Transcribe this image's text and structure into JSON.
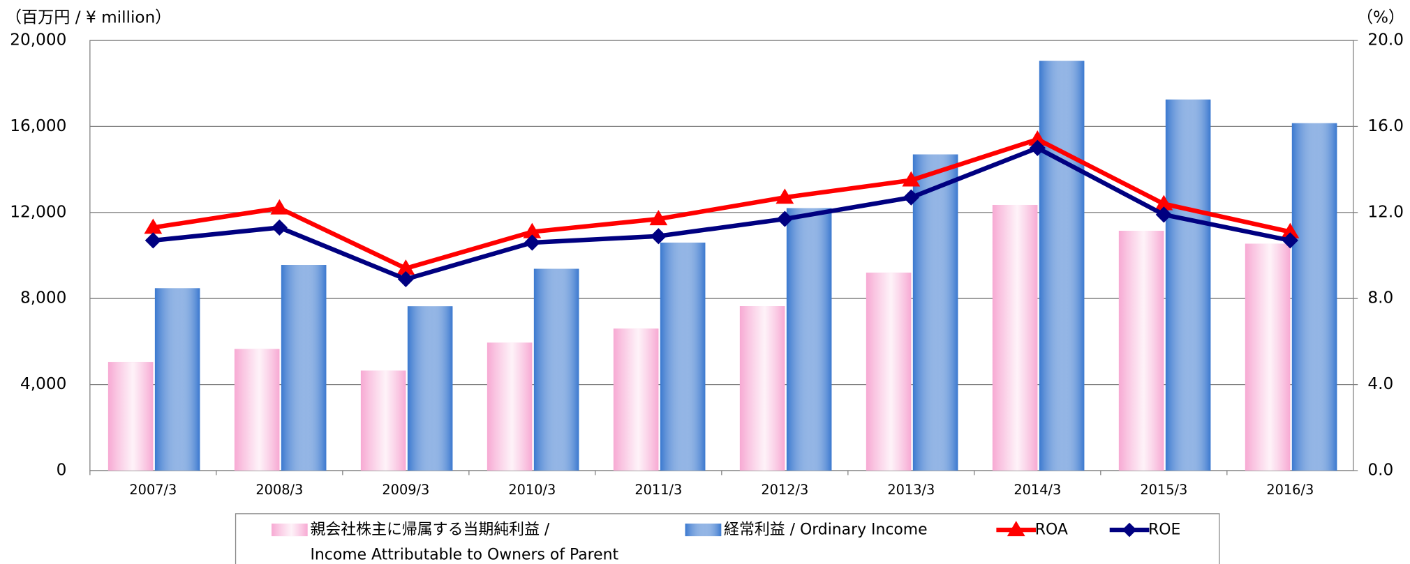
{
  "chart_data": {
    "type": "bar",
    "y_unit_label": "（百万円 / ¥ million）",
    "y2_unit_label": "（%）",
    "categories": [
      "2007/3",
      "2008/3",
      "2009/3",
      "2010/3",
      "2011/3",
      "2012/3",
      "2013/3",
      "2014/3",
      "2015/3",
      "2016/3"
    ],
    "series": [
      {
        "name": "親会社株主に帰属する当期純利益 /\nIncome Attributable to Owners of Parent",
        "color": "#f7a9d3",
        "type": "bar",
        "values": [
          5050,
          5650,
          4650,
          5950,
          6600,
          7650,
          9200,
          12350,
          11150,
          10550
        ]
      },
      {
        "name": "経常利益 / Ordinary Income",
        "color": "#3a78cf",
        "type": "bar",
        "values": [
          8480,
          9560,
          7640,
          9380,
          10600,
          12200,
          14700,
          19050,
          17250,
          16150
        ]
      },
      {
        "name": "ROA",
        "color": "#ff0000",
        "type": "line",
        "marker": "triangle",
        "axis": "y2",
        "values": [
          11.3,
          12.2,
          9.4,
          11.1,
          11.7,
          12.7,
          13.5,
          15.4,
          12.4,
          11.1
        ]
      },
      {
        "name": "ROE",
        "color": "#000080",
        "type": "line",
        "marker": "diamond",
        "axis": "y2",
        "values": [
          10.7,
          11.3,
          8.9,
          10.6,
          10.9,
          11.7,
          12.7,
          15.0,
          11.9,
          10.7
        ]
      }
    ],
    "ylim": [
      0,
      20000
    ],
    "yticks": [
      0,
      {
        "value": 4000,
        "label": "4,000"
      },
      {
        "value": 8000,
        "label": "8,000"
      },
      {
        "value": 12000,
        "label": "12,000"
      },
      {
        "value": 16000,
        "label": "16,000"
      },
      {
        "value": 20000,
        "label": "20,000"
      }
    ],
    "y2lim": [
      0,
      20
    ],
    "y2ticks": [
      {
        "value": 0,
        "label": "0.0"
      },
      {
        "value": 4,
        "label": "4.0"
      },
      {
        "value": 8,
        "label": "8.0"
      },
      {
        "value": 12,
        "label": "12.0"
      },
      {
        "value": 16,
        "label": "16.0"
      },
      {
        "value": 20,
        "label": "20.0"
      }
    ],
    "grid": true
  }
}
